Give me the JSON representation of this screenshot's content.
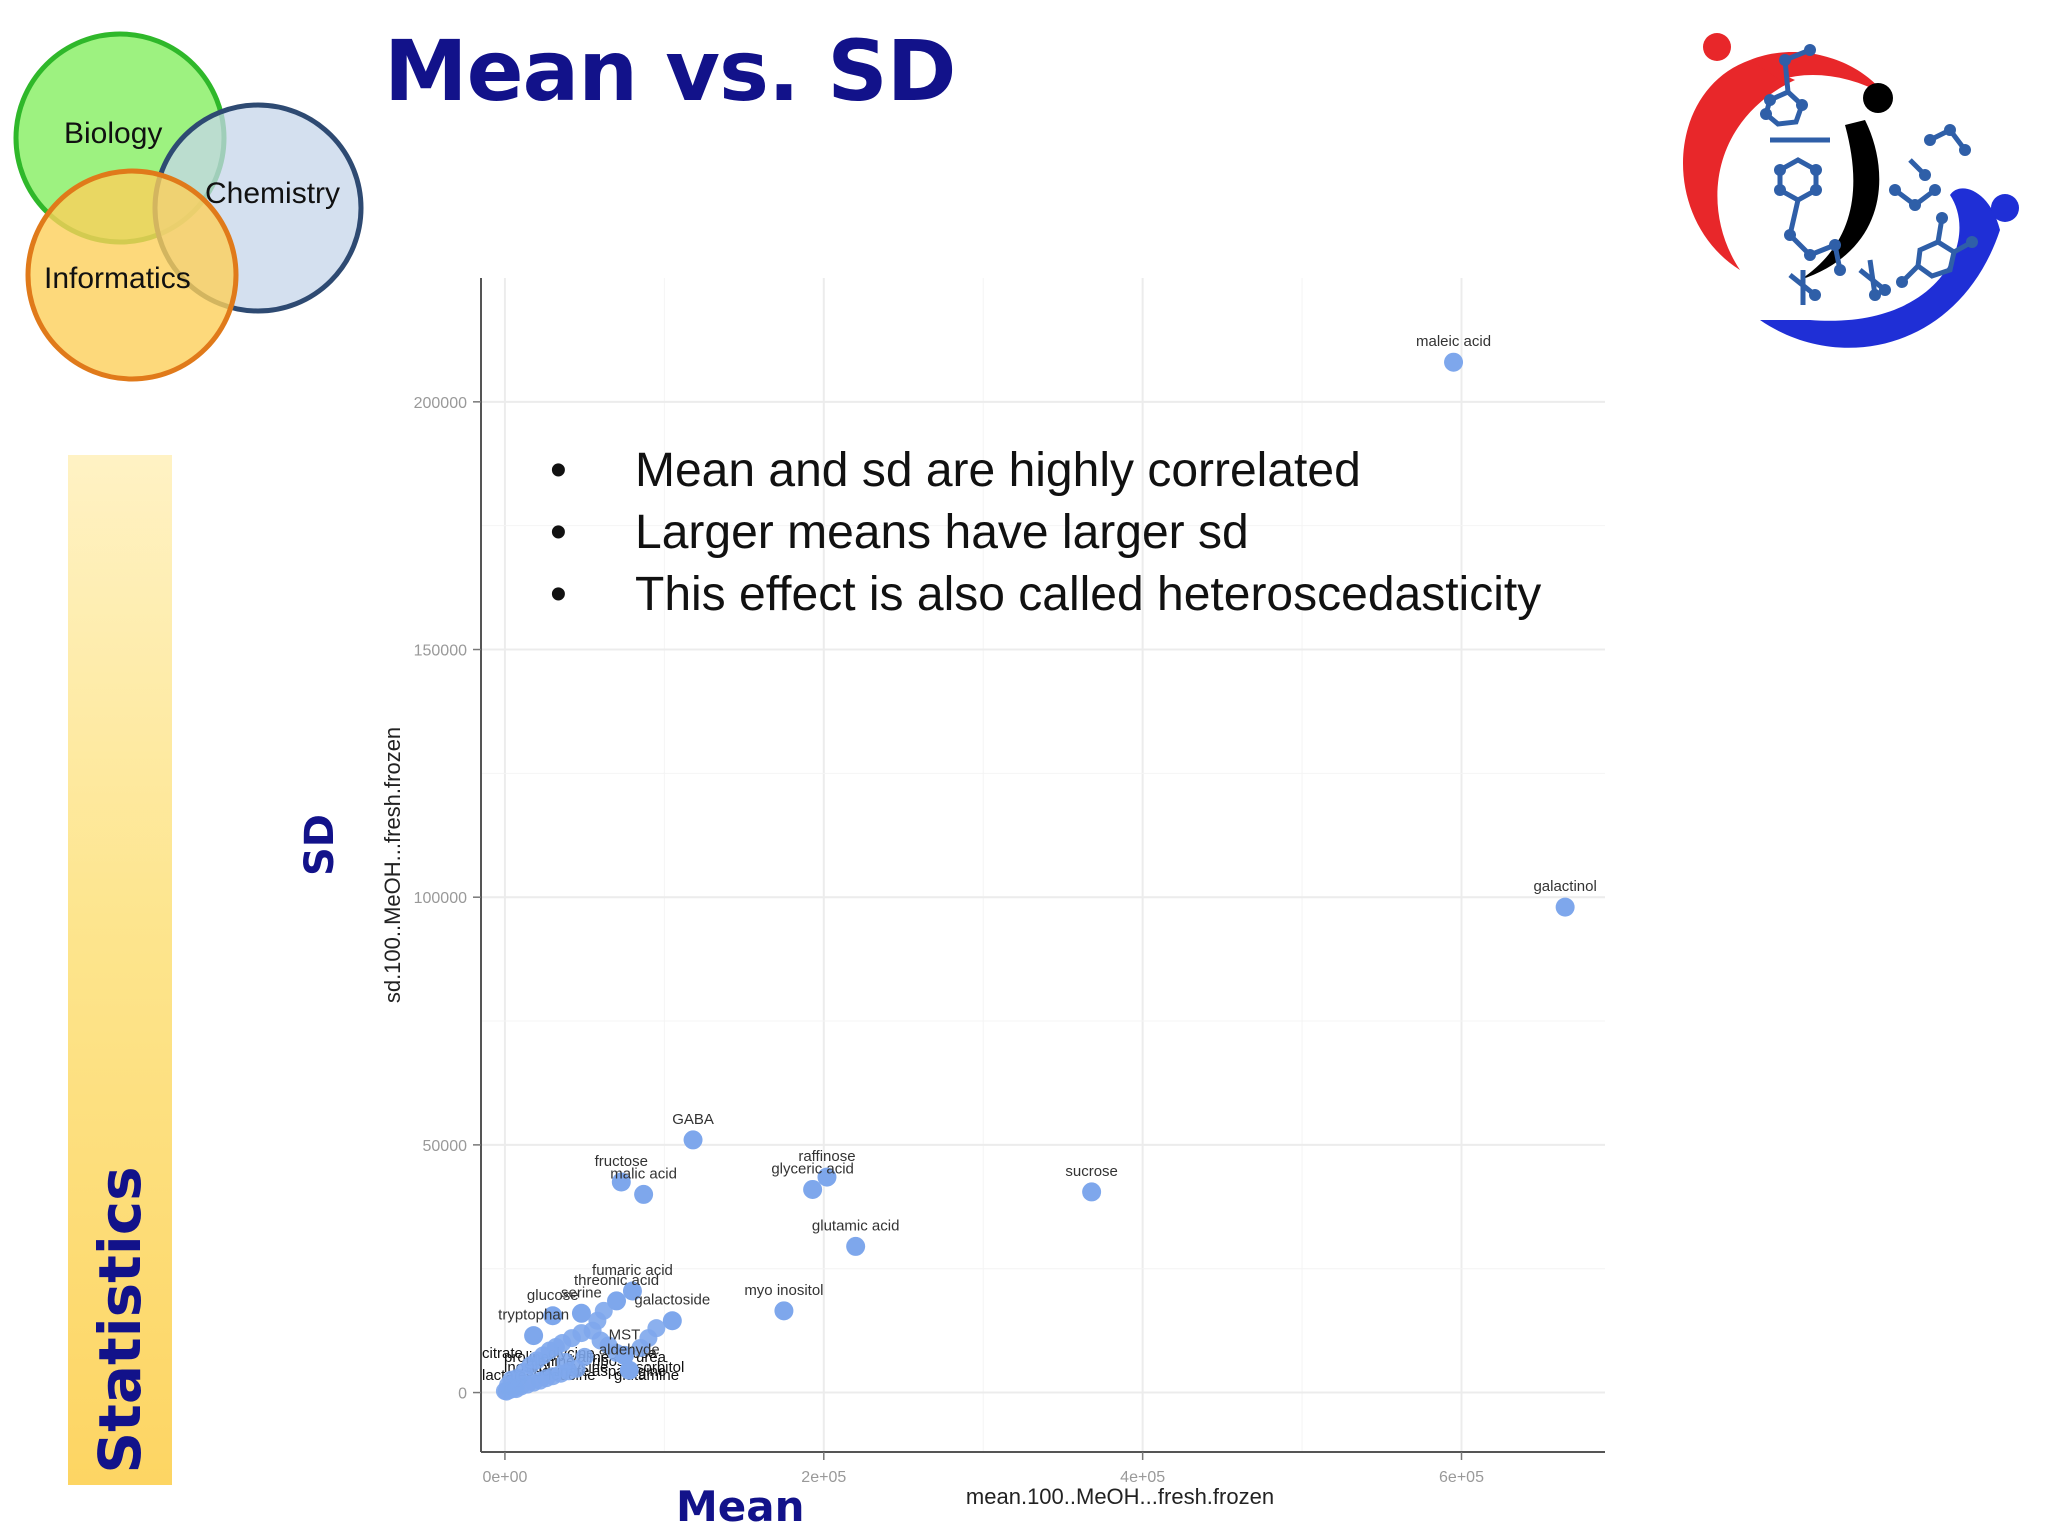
{
  "slide": {
    "title": "Mean vs. SD",
    "sidebar_label": "Statistics",
    "sd_label": "SD",
    "mean_label": "Mean",
    "bullets": [
      "Mean and sd are highly correlated",
      "Larger means have larger sd",
      "This effect is also called heteroscedasticity"
    ]
  },
  "venn": {
    "circles": [
      {
        "label": "Biology",
        "color": "#8cf06a",
        "stroke": "#2fb82a"
      },
      {
        "label": "Chemistry",
        "color": "#c6d6ea",
        "stroke": "#2e4a72"
      },
      {
        "label": "Informatics",
        "color": "#fdd05a",
        "stroke": "#e07a1a"
      }
    ]
  },
  "logo": {
    "icon": "metabolomics-logo-icon",
    "colors": [
      "#e8272a",
      "#000000",
      "#1f2fd6",
      "#2f5fa8"
    ]
  },
  "chart_data": {
    "type": "scatter",
    "xlabel": "mean.100..MeOH...fresh.frozen",
    "ylabel": "sd.100..MeOH...fresh.frozen",
    "xlim": [
      -15000,
      690000
    ],
    "ylim": [
      -12000,
      225000
    ],
    "x_ticks": [
      {
        "value": 0,
        "label": "0e+00"
      },
      {
        "value": 200000,
        "label": "2e+05"
      },
      {
        "value": 400000,
        "label": "4e+05"
      },
      {
        "value": 600000,
        "label": "6e+05"
      }
    ],
    "y_ticks": [
      {
        "value": 0,
        "label": "0"
      },
      {
        "value": 50000,
        "label": "50000"
      },
      {
        "value": 100000,
        "label": "100000"
      },
      {
        "value": 150000,
        "label": "150000"
      },
      {
        "value": 200000,
        "label": "200000"
      }
    ],
    "point_color": "#7ea7ec",
    "labeled_points": [
      {
        "label": "maleic acid",
        "x": 595000,
        "y": 208000
      },
      {
        "label": "galactinol",
        "x": 665000,
        "y": 98000
      },
      {
        "label": "sucrose",
        "x": 368000,
        "y": 40500
      },
      {
        "label": "GABA",
        "x": 118000,
        "y": 51000
      },
      {
        "label": "raffinose",
        "x": 202000,
        "y": 43500
      },
      {
        "label": "glyceric acid",
        "x": 193000,
        "y": 41000
      },
      {
        "label": "fructose",
        "x": 73000,
        "y": 42500
      },
      {
        "label": "malic acid",
        "x": 87000,
        "y": 40000
      },
      {
        "label": "glutamic acid",
        "x": 220000,
        "y": 29500
      },
      {
        "label": "myo inositol",
        "x": 175000,
        "y": 16500
      },
      {
        "label": "fumaric acid",
        "x": 80000,
        "y": 20500
      },
      {
        "label": "threonic acid",
        "x": 70000,
        "y": 18500
      },
      {
        "label": "galactoside",
        "x": 105000,
        "y": 14500
      },
      {
        "label": "glucose",
        "x": 30000,
        "y": 15500
      },
      {
        "label": "serine",
        "x": 48000,
        "y": 16000
      },
      {
        "label": "tryptophan",
        "x": 18000,
        "y": 11500
      },
      {
        "label": "aldehyde",
        "x": 78000,
        "y": 4500
      },
      {
        "label": "MST",
        "x": 75000,
        "y": 7500
      }
    ],
    "unlabeled_points": [
      [
        0,
        300
      ],
      [
        3000,
        500
      ],
      [
        6000,
        900
      ],
      [
        10000,
        1200
      ],
      [
        14000,
        1600
      ],
      [
        18000,
        2000
      ],
      [
        22000,
        2400
      ],
      [
        26000,
        2900
      ],
      [
        30000,
        3300
      ],
      [
        35000,
        3800
      ],
      [
        40000,
        4300
      ],
      [
        45000,
        4800
      ],
      [
        2000,
        1500
      ],
      [
        8000,
        3000
      ],
      [
        12000,
        4200
      ],
      [
        16000,
        5500
      ],
      [
        20000,
        6500
      ],
      [
        24000,
        7500
      ],
      [
        28000,
        8500
      ],
      [
        32000,
        9200
      ],
      [
        36000,
        10000
      ],
      [
        42000,
        11000
      ],
      [
        48000,
        12000
      ],
      [
        55000,
        12500
      ],
      [
        60000,
        10500
      ],
      [
        65000,
        9500
      ],
      [
        70000,
        8000
      ],
      [
        85000,
        9000
      ],
      [
        90000,
        11000
      ],
      [
        95000,
        13000
      ],
      [
        58000,
        14500
      ],
      [
        62000,
        16500
      ],
      [
        38000,
        6200
      ],
      [
        50000,
        7200
      ],
      [
        4000,
        2600
      ],
      [
        7000,
        700
      ],
      [
        1000,
        200
      ]
    ],
    "crowded_labels": [
      "citrate",
      "proline",
      "alanine",
      "glycine",
      "valine",
      "ribose",
      "xylose",
      "urea",
      "lactate",
      "inositol",
      "succinate",
      "leucine",
      "lysine",
      "asparagine",
      "glutamine",
      "sorbitol"
    ]
  }
}
